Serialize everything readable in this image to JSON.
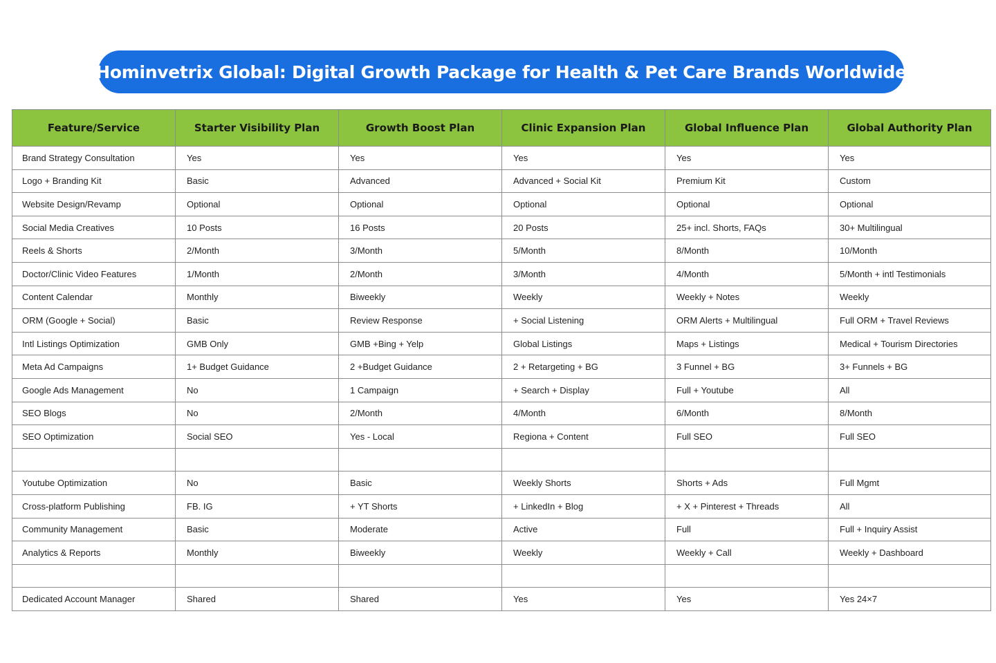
{
  "title": "Hominvetrix Global: Digital Growth Package for Health & Pet Care Brands Worldwide",
  "colors": {
    "title_background": "#1a6fe0",
    "header_background": "#8cc43f",
    "border": "#8c8c8c"
  },
  "table": {
    "headers": [
      "Feature/Service",
      "Starter Visibility Plan",
      "Growth Boost Plan",
      "Clinic Expansion Plan",
      "Global Influence Plan",
      "Global Authority Plan"
    ],
    "rows": [
      [
        "Brand Strategy Consultation",
        "Yes",
        "Yes",
        "Yes",
        "Yes",
        "Yes"
      ],
      [
        "Logo + Branding Kit",
        "Basic",
        "Advanced",
        "Advanced + Social Kit",
        "Premium Kit",
        "Custom"
      ],
      [
        "Website Design/Revamp",
        "Optional",
        "Optional",
        "Optional",
        "Optional",
        "Optional"
      ],
      [
        "Social Media Creatives",
        "10 Posts",
        "16 Posts",
        "20 Posts",
        "25+ incl. Shorts, FAQs",
        "30+ Multilingual"
      ],
      [
        "Reels & Shorts",
        "2/Month",
        "3/Month",
        "5/Month",
        "8/Month",
        "10/Month"
      ],
      [
        "Doctor/Clinic Video Features",
        "1/Month",
        "2/Month",
        "3/Month",
        "4/Month",
        "5/Month + intl Testimonials"
      ],
      [
        "Content Calendar",
        "Monthly",
        "Biweekly",
        "Weekly",
        "Weekly + Notes",
        "Weekly"
      ],
      [
        "ORM (Google + Social)",
        "Basic",
        "Review Response",
        "+  Social Listening",
        "ORM Alerts + Multilingual",
        "Full ORM + Travel Reviews"
      ],
      [
        "Intl Listings Optimization",
        "GMB Only",
        "GMB +Bing + Yelp",
        "Global Listings",
        "Maps + Listings",
        "Medical + Tourism Directories"
      ],
      [
        "Meta Ad Campaigns",
        "1+ Budget Guidance",
        "2 +Budget Guidance",
        "2 + Retargeting + BG",
        "3 Funnel + BG",
        "3+ Funnels + BG"
      ],
      [
        "Google Ads Management",
        "No",
        "1 Campaign",
        "+ Search + Display",
        "Full + Youtube",
        "All"
      ],
      [
        "SEO Blogs",
        "No",
        "2/Month",
        "4/Month",
        "6/Month",
        "8/Month"
      ],
      [
        "SEO Optimization",
        "Social SEO",
        "Yes - Local",
        "Regiona + Content",
        "Full SEO",
        "Full  SEO"
      ],
      [
        "",
        "",
        "",
        "",
        "",
        ""
      ],
      [
        "Youtube Optimization",
        "No",
        "Basic",
        "Weekly Shorts",
        "Shorts + Ads",
        "Full Mgmt"
      ],
      [
        "Cross-platform Publishing",
        "FB. IG",
        "+  YT Shorts",
        "+  LinkedIn + Blog",
        "+  X + Pinterest + Threads",
        "All"
      ],
      [
        "Community Management",
        "Basic",
        "Moderate",
        "Active",
        "Full",
        "Full + Inquiry Assist"
      ],
      [
        "Analytics & Reports",
        "Monthly",
        "Biweekly",
        "Weekly",
        "Weekly + Call",
        "Weekly + Dashboard"
      ],
      [
        "",
        "",
        "",
        "",
        "",
        ""
      ],
      [
        "Dedicated Account Manager",
        "Shared",
        "Shared",
        "Yes",
        "Yes",
        "Yes 24×7"
      ]
    ]
  }
}
